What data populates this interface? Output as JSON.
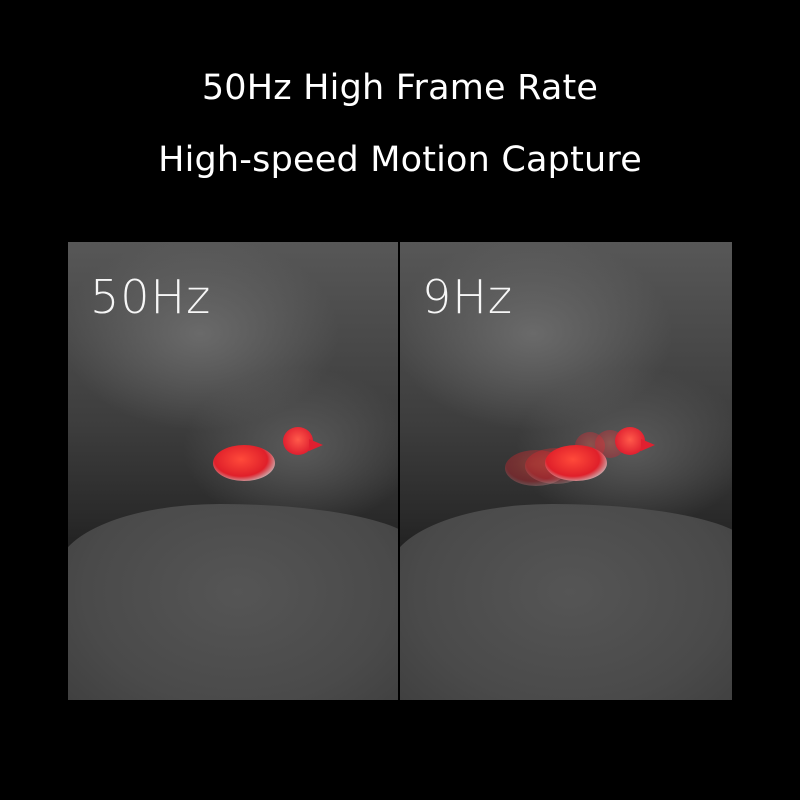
{
  "heading": {
    "line1": "50Hz High Frame Rate",
    "line2": "High-speed Motion Capture"
  },
  "panels": [
    {
      "label": "50Hz"
    },
    {
      "label": "9Hz"
    }
  ],
  "colors": {
    "background": "#000000",
    "text": "#ffffff",
    "heat": "#e02030"
  }
}
